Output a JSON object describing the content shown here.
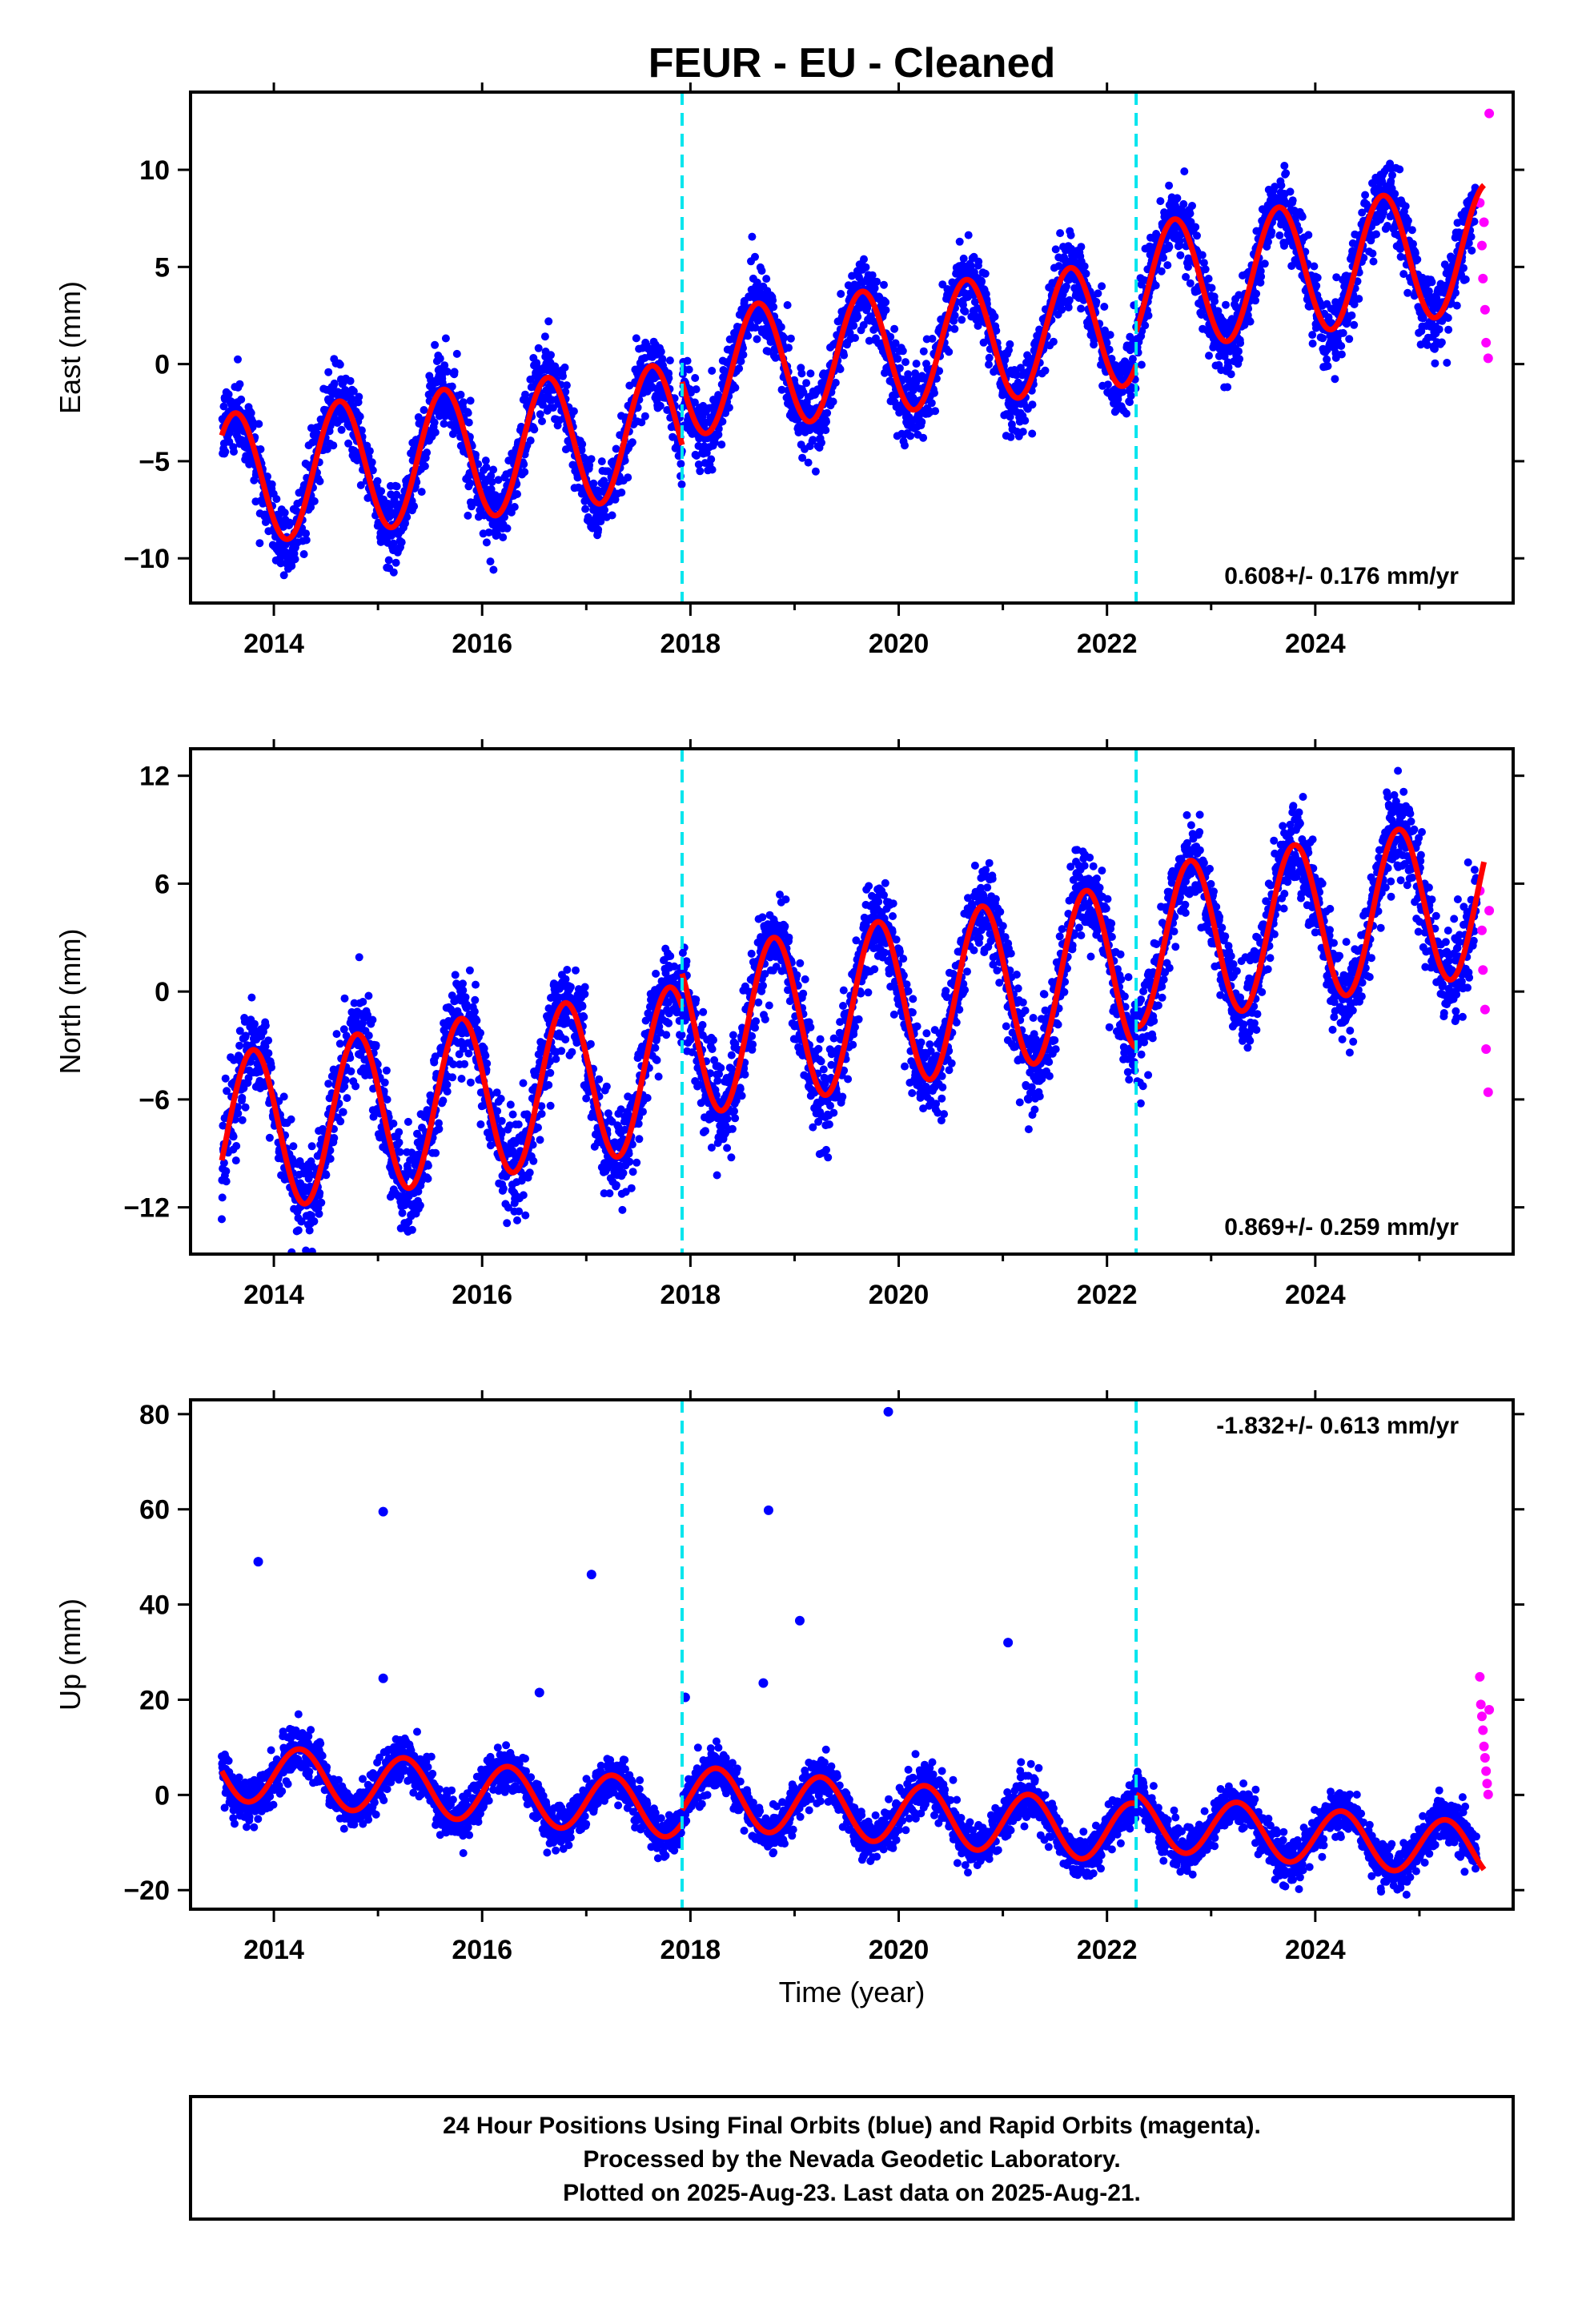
{
  "title": "FEUR  - EU - Cleaned",
  "xlabel": "Time (year)",
  "footer": {
    "line1": "24 Hour Positions Using Final Orbits (blue) and Rapid Orbits (magenta).",
    "line2": "Processed by the Nevada Geodetic Laboratory.",
    "line3": "Plotted on 2025-Aug-23. Last data on 2025-Aug-21."
  },
  "colors": {
    "final": "#0000ff",
    "rapid": "#ff00ff",
    "model": "#ff0000",
    "event": "#00e5ee"
  },
  "chart_data": [
    {
      "type": "scatter",
      "name": "east",
      "ylabel": "East (mm)",
      "rate_label": "0.608+/- 0.176 mm/yr",
      "rate_position": "bottom-right",
      "xlim": [
        2013.2,
        2025.9
      ],
      "ylim": [
        -12.3,
        14
      ],
      "xticks": [
        2014,
        2016,
        2018,
        2020,
        2022,
        2024
      ],
      "yticks": [
        -10,
        -5,
        0,
        5,
        10
      ],
      "event_lines": [
        2017.92,
        2022.28
      ],
      "model": {
        "trend_per_yr": 0.608,
        "segments": [
          {
            "x0": 2013.5,
            "x1": 2017.92,
            "offset": -6.0,
            "amp": 3.4,
            "phase": 0.38
          },
          {
            "x0": 2017.92,
            "x1": 2022.28,
            "offset": -3.2,
            "amp": 3.2,
            "phase": 0.4
          },
          {
            "x0": 2022.28,
            "x1": 2025.62,
            "offset": -1.4,
            "amp": 3.3,
            "phase": 0.4
          }
        ]
      },
      "final_points": {
        "x0": 2013.5,
        "x1": 2025.55,
        "noise": 1.7
      },
      "rapid_points": [
        {
          "x": 2025.58,
          "y": 8.3
        },
        {
          "x": 2025.6,
          "y": 6.1
        },
        {
          "x": 2025.61,
          "y": 4.4
        },
        {
          "x": 2025.63,
          "y": 2.8
        },
        {
          "x": 2025.64,
          "y": 1.1
        },
        {
          "x": 2025.66,
          "y": 0.3
        },
        {
          "x": 2025.67,
          "y": 12.9
        },
        {
          "x": 2025.62,
          "y": 7.3
        }
      ]
    },
    {
      "type": "scatter",
      "name": "north",
      "ylabel": "North (mm)",
      "rate_label": "0.869+/- 0.259 mm/yr",
      "rate_position": "bottom-right",
      "xlim": [
        2013.2,
        2025.9
      ],
      "ylim": [
        -14.6,
        13.5
      ],
      "xticks": [
        2014,
        2016,
        2018,
        2020,
        2022,
        2024
      ],
      "yticks": [
        -12,
        -6,
        0,
        6,
        12
      ],
      "event_lines": [
        2017.92,
        2022.28
      ],
      "model": {
        "trend_per_yr": 0.869,
        "segments": [
          {
            "x0": 2013.5,
            "x1": 2017.92,
            "offset": -8.0,
            "amp": 4.5,
            "phase": 0.55
          },
          {
            "x0": 2017.92,
            "x1": 2022.28,
            "offset": -6.2,
            "amp": 4.6,
            "phase": 0.55
          },
          {
            "x0": 2022.28,
            "x1": 2025.62,
            "offset": -5.2,
            "amp": 4.4,
            "phase": 0.55
          }
        ]
      },
      "final_points": {
        "x0": 2013.5,
        "x1": 2025.55,
        "noise": 2.3
      },
      "rapid_points": [
        {
          "x": 2025.58,
          "y": 5.6
        },
        {
          "x": 2025.6,
          "y": 3.4
        },
        {
          "x": 2025.61,
          "y": 1.2
        },
        {
          "x": 2025.63,
          "y": -1.0
        },
        {
          "x": 2025.64,
          "y": -3.2
        },
        {
          "x": 2025.66,
          "y": -5.6
        },
        {
          "x": 2025.67,
          "y": 4.5
        }
      ]
    },
    {
      "type": "scatter",
      "name": "up",
      "ylabel": "Up (mm)",
      "rate_label": "-1.832+/- 0.613 mm/yr",
      "rate_position": "top-right",
      "xlim": [
        2013.2,
        2025.9
      ],
      "ylim": [
        -24,
        83
      ],
      "xticks": [
        2014,
        2016,
        2018,
        2020,
        2022,
        2024
      ],
      "yticks": [
        -20,
        0,
        20,
        40,
        60,
        80
      ],
      "event_lines": [
        2017.92,
        2022.28
      ],
      "model": {
        "trend_per_yr": -1.832,
        "segments": [
          {
            "x0": 2013.5,
            "x1": 2017.92,
            "offset": 5.0,
            "amp": 6.0,
            "phase": 0.0
          },
          {
            "x0": 2017.92,
            "x1": 2022.28,
            "offset": 8.0,
            "amp": 6.3,
            "phase": 0.0
          },
          {
            "x0": 2022.28,
            "x1": 2025.62,
            "offset": 10.5,
            "amp": 5.8,
            "phase": 0.0
          }
        ]
      },
      "final_points": {
        "x0": 2013.5,
        "x1": 2025.55,
        "noise": 4.2
      },
      "outliers": [
        {
          "x": 2013.85,
          "y": 49
        },
        {
          "x": 2015.05,
          "y": 59.5
        },
        {
          "x": 2017.05,
          "y": 46.3
        },
        {
          "x": 2018.75,
          "y": 59.8
        },
        {
          "x": 2019.05,
          "y": 36.6
        },
        {
          "x": 2019.9,
          "y": 80.5
        },
        {
          "x": 2021.05,
          "y": 32.0
        },
        {
          "x": 2015.05,
          "y": 24.5
        },
        {
          "x": 2018.7,
          "y": 23.5
        },
        {
          "x": 2016.55,
          "y": 21.5
        },
        {
          "x": 2017.95,
          "y": 20.5
        }
      ],
      "rapid_points": [
        {
          "x": 2025.58,
          "y": 24.8
        },
        {
          "x": 2025.59,
          "y": 19.0
        },
        {
          "x": 2025.6,
          "y": 16.5
        },
        {
          "x": 2025.61,
          "y": 13.6
        },
        {
          "x": 2025.62,
          "y": 10.2
        },
        {
          "x": 2025.63,
          "y": 7.8
        },
        {
          "x": 2025.64,
          "y": 5.0
        },
        {
          "x": 2025.65,
          "y": 2.4
        },
        {
          "x": 2025.66,
          "y": 0.1
        },
        {
          "x": 2025.67,
          "y": 17.9
        }
      ]
    }
  ]
}
